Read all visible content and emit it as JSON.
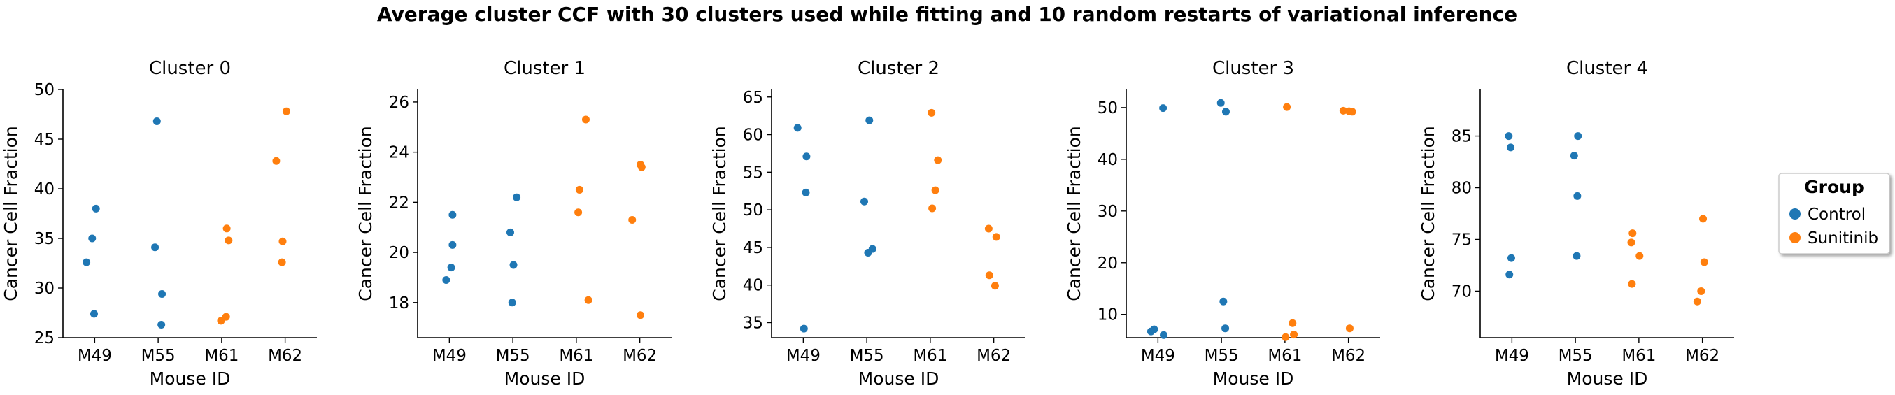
{
  "suptitle": "Average cluster CCF with 30 clusters used while fitting and 10 random restarts of variational inference",
  "colors": {
    "Control": "#1f77b4",
    "Sunitinib": "#ff7f0e"
  },
  "legend": {
    "title": "Group",
    "items": [
      "Control",
      "Sunitinib"
    ],
    "placement": "right-center"
  },
  "chart_data": [
    {
      "type": "scatter",
      "title": "Cluster 0",
      "xlabel": "Mouse ID",
      "ylabel": "Cancer Cell Fraction",
      "categories": [
        "M49",
        "M55",
        "M61",
        "M62"
      ],
      "ylim": [
        25,
        50
      ],
      "yticks": [
        25,
        30,
        35,
        40,
        45,
        50
      ],
      "points": [
        {
          "cat": "M49",
          "y": 32.6,
          "group": "Control",
          "jitter": -0.13
        },
        {
          "cat": "M49",
          "y": 35.0,
          "group": "Control",
          "jitter": -0.04
        },
        {
          "cat": "M49",
          "y": 38.0,
          "group": "Control",
          "jitter": 0.02
        },
        {
          "cat": "M49",
          "y": 27.4,
          "group": "Control",
          "jitter": -0.01
        },
        {
          "cat": "M55",
          "y": 46.8,
          "group": "Control",
          "jitter": -0.02
        },
        {
          "cat": "M55",
          "y": 34.1,
          "group": "Control",
          "jitter": -0.05
        },
        {
          "cat": "M55",
          "y": 29.4,
          "group": "Control",
          "jitter": 0.06
        },
        {
          "cat": "M55",
          "y": 26.3,
          "group": "Control",
          "jitter": 0.05
        },
        {
          "cat": "M61",
          "y": 36.0,
          "group": "Sunitinib",
          "jitter": 0.08
        },
        {
          "cat": "M61",
          "y": 34.8,
          "group": "Sunitinib",
          "jitter": 0.11
        },
        {
          "cat": "M61",
          "y": 27.1,
          "group": "Sunitinib",
          "jitter": 0.07
        },
        {
          "cat": "M61",
          "y": 26.7,
          "group": "Sunitinib",
          "jitter": -0.01
        },
        {
          "cat": "M62",
          "y": 47.8,
          "group": "Sunitinib",
          "jitter": 0.02
        },
        {
          "cat": "M62",
          "y": 42.8,
          "group": "Sunitinib",
          "jitter": -0.14
        },
        {
          "cat": "M62",
          "y": 34.7,
          "group": "Sunitinib",
          "jitter": -0.04
        },
        {
          "cat": "M62",
          "y": 32.6,
          "group": "Sunitinib",
          "jitter": -0.05
        }
      ]
    },
    {
      "type": "scatter",
      "title": "Cluster 1",
      "xlabel": "Mouse ID",
      "ylabel": "Cancer Cell Fraction",
      "categories": [
        "M49",
        "M55",
        "M61",
        "M62"
      ],
      "ylim": [
        16.6,
        26.5
      ],
      "yticks": [
        18,
        20,
        22,
        24,
        26
      ],
      "points": [
        {
          "cat": "M49",
          "y": 21.5,
          "group": "Control",
          "jitter": 0.05
        },
        {
          "cat": "M49",
          "y": 20.3,
          "group": "Control",
          "jitter": 0.05
        },
        {
          "cat": "M49",
          "y": 19.4,
          "group": "Control",
          "jitter": 0.03
        },
        {
          "cat": "M49",
          "y": 18.9,
          "group": "Control",
          "jitter": -0.05
        },
        {
          "cat": "M55",
          "y": 22.2,
          "group": "Control",
          "jitter": 0.06
        },
        {
          "cat": "M55",
          "y": 20.8,
          "group": "Control",
          "jitter": -0.04
        },
        {
          "cat": "M55",
          "y": 19.5,
          "group": "Control",
          "jitter": 0.01
        },
        {
          "cat": "M55",
          "y": 18.0,
          "group": "Control",
          "jitter": -0.01
        },
        {
          "cat": "M61",
          "y": 25.3,
          "group": "Sunitinib",
          "jitter": 0.15
        },
        {
          "cat": "M61",
          "y": 22.5,
          "group": "Sunitinib",
          "jitter": 0.05
        },
        {
          "cat": "M61",
          "y": 21.6,
          "group": "Sunitinib",
          "jitter": 0.03
        },
        {
          "cat": "M61",
          "y": 18.1,
          "group": "Sunitinib",
          "jitter": 0.19
        },
        {
          "cat": "M62",
          "y": 23.5,
          "group": "Sunitinib",
          "jitter": 0.01
        },
        {
          "cat": "M62",
          "y": 23.4,
          "group": "Sunitinib",
          "jitter": 0.03
        },
        {
          "cat": "M62",
          "y": 21.3,
          "group": "Sunitinib",
          "jitter": -0.12
        },
        {
          "cat": "M62",
          "y": 17.5,
          "group": "Sunitinib",
          "jitter": 0.01
        }
      ]
    },
    {
      "type": "scatter",
      "title": "Cluster 2",
      "xlabel": "Mouse ID",
      "ylabel": "Cancer Cell Fraction",
      "categories": [
        "M49",
        "M55",
        "M61",
        "M62"
      ],
      "ylim": [
        33,
        66
      ],
      "yticks": [
        35,
        40,
        45,
        50,
        55,
        60,
        65
      ],
      "points": [
        {
          "cat": "M49",
          "y": 60.9,
          "group": "Control",
          "jitter": -0.09
        },
        {
          "cat": "M49",
          "y": 57.1,
          "group": "Control",
          "jitter": 0.05
        },
        {
          "cat": "M49",
          "y": 52.3,
          "group": "Control",
          "jitter": 0.04
        },
        {
          "cat": "M49",
          "y": 34.2,
          "group": "Control",
          "jitter": 0.01
        },
        {
          "cat": "M55",
          "y": 61.9,
          "group": "Control",
          "jitter": 0.04
        },
        {
          "cat": "M55",
          "y": 51.1,
          "group": "Control",
          "jitter": -0.04
        },
        {
          "cat": "M55",
          "y": 44.8,
          "group": "Control",
          "jitter": 0.09
        },
        {
          "cat": "M55",
          "y": 44.3,
          "group": "Control",
          "jitter": 0.02
        },
        {
          "cat": "M61",
          "y": 62.9,
          "group": "Sunitinib",
          "jitter": 0.02
        },
        {
          "cat": "M61",
          "y": 56.6,
          "group": "Sunitinib",
          "jitter": 0.12
        },
        {
          "cat": "M61",
          "y": 52.6,
          "group": "Sunitinib",
          "jitter": 0.08
        },
        {
          "cat": "M61",
          "y": 50.2,
          "group": "Sunitinib",
          "jitter": 0.03
        },
        {
          "cat": "M62",
          "y": 47.5,
          "group": "Sunitinib",
          "jitter": -0.08
        },
        {
          "cat": "M62",
          "y": 46.4,
          "group": "Sunitinib",
          "jitter": 0.04
        },
        {
          "cat": "M62",
          "y": 41.3,
          "group": "Sunitinib",
          "jitter": -0.07
        },
        {
          "cat": "M62",
          "y": 39.9,
          "group": "Sunitinib",
          "jitter": 0.02
        }
      ]
    },
    {
      "type": "scatter",
      "title": "Cluster 3",
      "xlabel": "Mouse ID",
      "ylabel": "Cancer Cell Fraction",
      "categories": [
        "M49",
        "M55",
        "M61",
        "M62"
      ],
      "ylim": [
        5.5,
        53.5
      ],
      "yticks": [
        10,
        20,
        30,
        40,
        50
      ],
      "points": [
        {
          "cat": "M49",
          "y": 49.9,
          "group": "Control",
          "jitter": 0.08
        },
        {
          "cat": "M49",
          "y": 7.1,
          "group": "Control",
          "jitter": -0.06
        },
        {
          "cat": "M49",
          "y": 6.7,
          "group": "Control",
          "jitter": -0.11
        },
        {
          "cat": "M49",
          "y": 6.0,
          "group": "Control",
          "jitter": 0.09
        },
        {
          "cat": "M55",
          "y": 50.9,
          "group": "Control",
          "jitter": -0.01
        },
        {
          "cat": "M55",
          "y": 49.2,
          "group": "Control",
          "jitter": 0.07
        },
        {
          "cat": "M55",
          "y": 12.5,
          "group": "Control",
          "jitter": 0.03
        },
        {
          "cat": "M55",
          "y": 7.3,
          "group": "Control",
          "jitter": 0.06
        },
        {
          "cat": "M61",
          "y": 50.1,
          "group": "Sunitinib",
          "jitter": 0.03
        },
        {
          "cat": "M61",
          "y": 8.3,
          "group": "Sunitinib",
          "jitter": 0.12
        },
        {
          "cat": "M61",
          "y": 6.1,
          "group": "Sunitinib",
          "jitter": 0.14
        },
        {
          "cat": "M61",
          "y": 5.6,
          "group": "Sunitinib",
          "jitter": 0.01
        },
        {
          "cat": "M62",
          "y": 49.4,
          "group": "Sunitinib",
          "jitter": -0.08
        },
        {
          "cat": "M62",
          "y": 49.3,
          "group": "Sunitinib",
          "jitter": 0.01
        },
        {
          "cat": "M62",
          "y": 49.2,
          "group": "Sunitinib",
          "jitter": 0.06
        },
        {
          "cat": "M62",
          "y": 7.3,
          "group": "Sunitinib",
          "jitter": 0.02
        }
      ]
    },
    {
      "type": "scatter",
      "title": "Cluster 4",
      "xlabel": "Mouse ID",
      "ylabel": "Cancer Cell Fraction",
      "categories": [
        "M49",
        "M55",
        "M61",
        "M62"
      ],
      "ylim": [
        65.5,
        89.5
      ],
      "yticks": [
        70,
        75,
        80,
        85
      ],
      "points": [
        {
          "cat": "M49",
          "y": 85.0,
          "group": "Control",
          "jitter": -0.05
        },
        {
          "cat": "M49",
          "y": 83.9,
          "group": "Control",
          "jitter": -0.02
        },
        {
          "cat": "M49",
          "y": 73.2,
          "group": "Control",
          "jitter": -0.01
        },
        {
          "cat": "M49",
          "y": 71.6,
          "group": "Control",
          "jitter": -0.04
        },
        {
          "cat": "M55",
          "y": 85.0,
          "group": "Control",
          "jitter": 0.04
        },
        {
          "cat": "M55",
          "y": 83.1,
          "group": "Control",
          "jitter": -0.02
        },
        {
          "cat": "M55",
          "y": 79.2,
          "group": "Control",
          "jitter": 0.03
        },
        {
          "cat": "M55",
          "y": 73.4,
          "group": "Control",
          "jitter": 0.02
        },
        {
          "cat": "M61",
          "y": 75.6,
          "group": "Sunitinib",
          "jitter": -0.1
        },
        {
          "cat": "M61",
          "y": 74.7,
          "group": "Sunitinib",
          "jitter": -0.12
        },
        {
          "cat": "M61",
          "y": 73.4,
          "group": "Sunitinib",
          "jitter": 0.01
        },
        {
          "cat": "M61",
          "y": 70.7,
          "group": "Sunitinib",
          "jitter": -0.11
        },
        {
          "cat": "M62",
          "y": 77.0,
          "group": "Sunitinib",
          "jitter": 0.01
        },
        {
          "cat": "M62",
          "y": 72.8,
          "group": "Sunitinib",
          "jitter": 0.03
        },
        {
          "cat": "M62",
          "y": 70.0,
          "group": "Sunitinib",
          "jitter": -0.02
        },
        {
          "cat": "M62",
          "y": 69.0,
          "group": "Sunitinib",
          "jitter": -0.08
        }
      ]
    }
  ]
}
